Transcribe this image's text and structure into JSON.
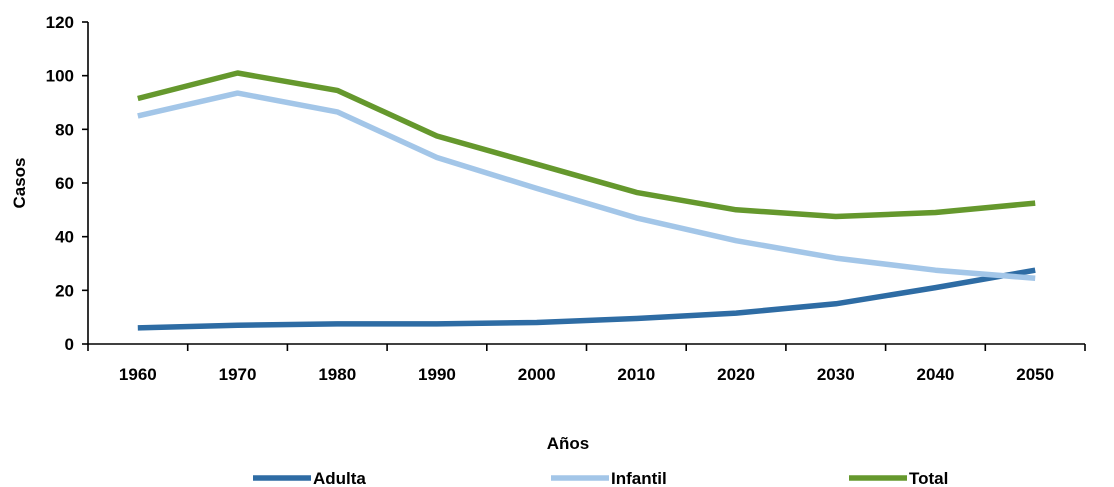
{
  "chart_data": {
    "type": "line",
    "xlabel": "Años",
    "ylabel": "Casos",
    "ylim": [
      0,
      120
    ],
    "yticks": [
      "0",
      "20",
      "40",
      "60",
      "80",
      "100",
      "120"
    ],
    "categories": [
      "1960",
      "1970",
      "1980",
      "1990",
      "2000",
      "2010",
      "2020",
      "2030",
      "2040",
      "2050"
    ],
    "grid": false,
    "legend_position": "bottom",
    "series": [
      {
        "name": "Adulta",
        "color": "#2e6ca4",
        "values": [
          6,
          7,
          7.5,
          7.5,
          8,
          9.5,
          11.5,
          15,
          21,
          27.5
        ]
      },
      {
        "name": "Infantil",
        "color": "#a3c6e8",
        "values": [
          85,
          93.5,
          86.5,
          69.5,
          58,
          47,
          38.5,
          32,
          27.5,
          24.5
        ]
      },
      {
        "name": "Total",
        "color": "#65982d",
        "values": [
          91.5,
          101,
          94.5,
          77.5,
          67,
          56.5,
          50,
          47.5,
          49,
          52.5
        ]
      }
    ]
  }
}
